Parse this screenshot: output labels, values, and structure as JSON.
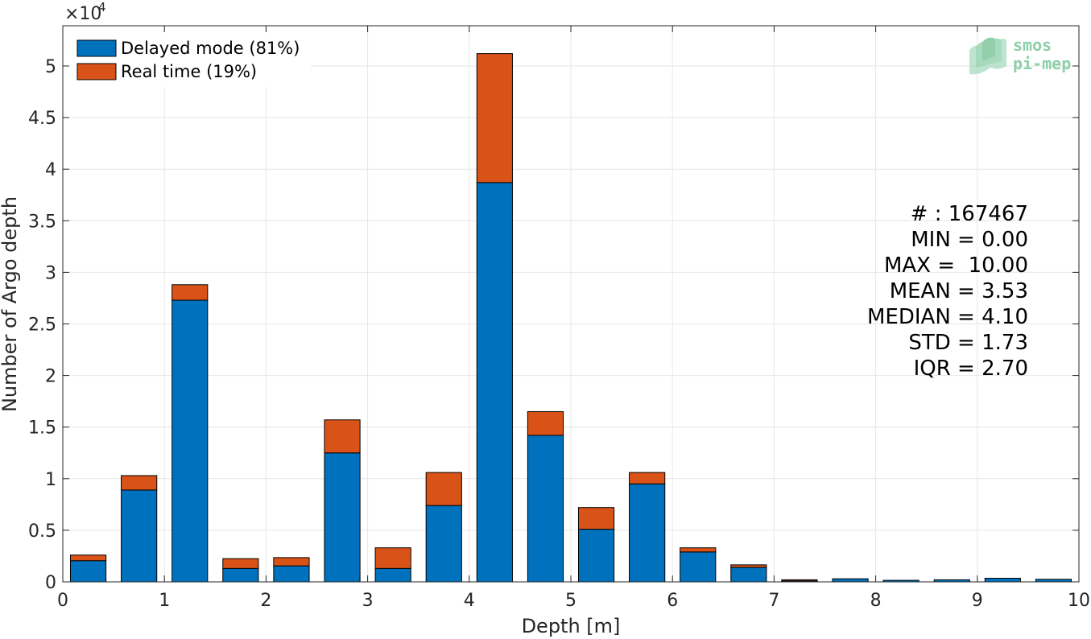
{
  "chart_data": {
    "type": "bar",
    "stacked": true,
    "xlabel": "Depth [m]",
    "ylabel": "Number of Argo depth",
    "y_exponent_label": "×10",
    "y_exponent_power": "4",
    "xlim": [
      0,
      10
    ],
    "ylim": [
      0,
      53900
    ],
    "x_ticks": [
      "0",
      "1",
      "2",
      "3",
      "4",
      "5",
      "6",
      "7",
      "8",
      "9",
      "10"
    ],
    "y_ticks": [
      "0",
      "0.5",
      "1",
      "1.5",
      "2",
      "2.5",
      "3",
      "3.5",
      "4",
      "4.5",
      "5"
    ],
    "grid": true,
    "legend_position": "top-left",
    "bin_centers": [
      0.25,
      0.75,
      1.25,
      1.75,
      2.25,
      2.75,
      3.25,
      3.75,
      4.25,
      4.75,
      5.25,
      5.75,
      6.25,
      6.75,
      7.25,
      7.75,
      8.25,
      8.75,
      9.25,
      9.75
    ],
    "series": [
      {
        "name": "Delayed mode (81%)",
        "color": "#0072BD",
        "values": [
          2050,
          8900,
          27300,
          1300,
          1550,
          12500,
          1300,
          7400,
          38700,
          14200,
          5100,
          9500,
          2900,
          1400,
          100,
          300,
          150,
          200,
          350,
          250
        ]
      },
      {
        "name": "Real time (19%)",
        "color": "#D95319",
        "values": [
          550,
          1400,
          1500,
          950,
          800,
          3200,
          2000,
          3200,
          12500,
          2300,
          2100,
          1100,
          400,
          250,
          100,
          0,
          0,
          0,
          0,
          0
        ]
      }
    ],
    "annotations": [
      "# : 167467",
      "MIN = 0.00",
      "MAX =  10.00",
      "MEAN = 3.53",
      "MEDIAN = 4.10",
      "STD = 1.73",
      "IQR = 2.70"
    ]
  },
  "logo": {
    "line1": "smos",
    "line2": "pi-mep"
  }
}
